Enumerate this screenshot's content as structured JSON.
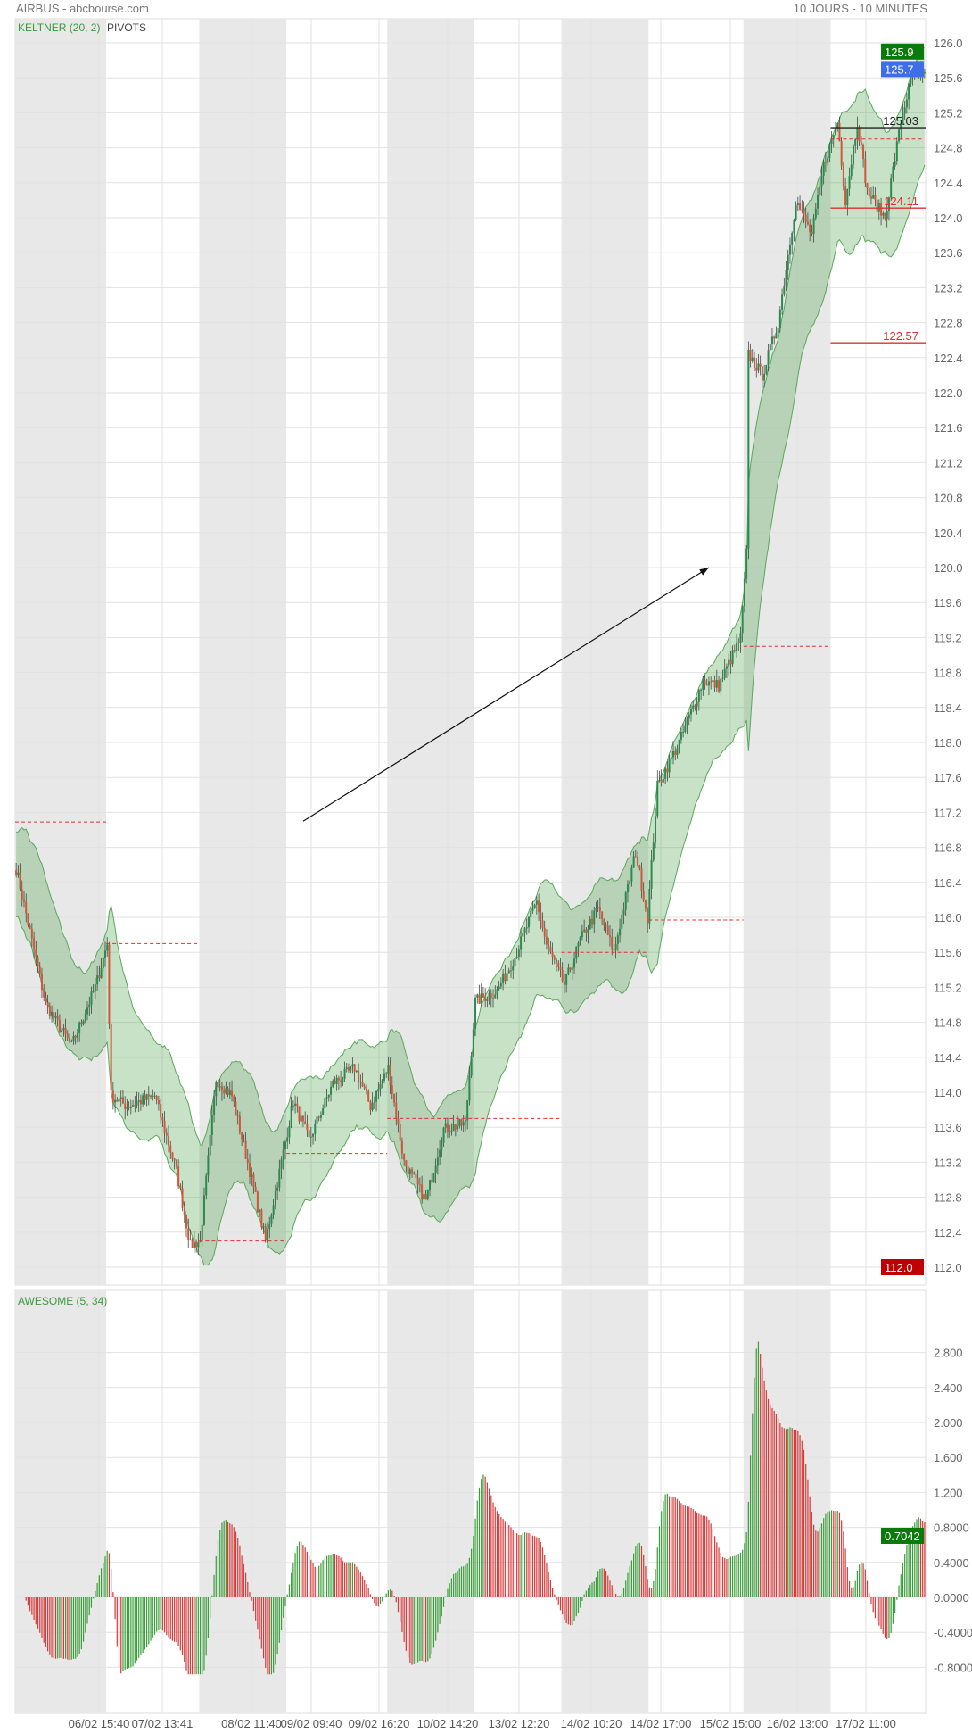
{
  "header": {
    "title": "AIRBUS - abcbourse.com",
    "period": "10 JOURS - 10 MINUTES"
  },
  "colors": {
    "up": "#2b8a4e",
    "down": "#d4553a",
    "band_stroke": "#5aa85a",
    "band_fill": "rgba(70,160,70,0.3)",
    "pivot": "#e03030",
    "ao_up": "#3a9e3a",
    "ao_down": "#d83a3a",
    "shade": "#e8e8e8"
  },
  "chart_data": [
    {
      "type": "candlestick",
      "title": "",
      "indicators": [
        "KELTNER (20, 2)",
        "PIVOTS"
      ],
      "ylim": [
        111.9,
        126.1
      ],
      "yticks": [
        "126.0",
        "125.6",
        "125.2",
        "124.8",
        "124.4",
        "124.0",
        "123.6",
        "123.2",
        "122.8",
        "122.4",
        "122.0",
        "121.6",
        "121.2",
        "120.8",
        "120.4",
        "120.0",
        "119.6",
        "119.2",
        "118.8",
        "118.4",
        "118.0",
        "117.6",
        "117.2",
        "116.8",
        "116.4",
        "116.0",
        "115.6",
        "115.2",
        "114.8",
        "114.4",
        "114.0",
        "113.6",
        "113.2",
        "112.8",
        "112.4",
        "112.0"
      ],
      "xticks": [
        "06/02 15:40",
        "07/02 13:41",
        "08/02 11:40",
        "09/02 09:40",
        "09/02 16:20",
        "10/02 14:20",
        "13/02 12:20",
        "14/02 10:20",
        "14/02 17:00",
        "15/02 15:00",
        "16/02 13:00",
        "17/02 11:00"
      ],
      "bars": 460,
      "close_anchors": [
        [
          0,
          116.56
        ],
        [
          15,
          115.0
        ],
        [
          28,
          114.53
        ],
        [
          40,
          115.2
        ],
        [
          46,
          115.7
        ],
        [
          48,
          113.96
        ],
        [
          56,
          113.84
        ],
        [
          70,
          113.96
        ],
        [
          81,
          113.1
        ],
        [
          88,
          112.25
        ],
        [
          93,
          112.3
        ],
        [
          101,
          114.15
        ],
        [
          109,
          113.96
        ],
        [
          118,
          113.1
        ],
        [
          126,
          112.3
        ],
        [
          134,
          113.2
        ],
        [
          140,
          113.9
        ],
        [
          148,
          113.45
        ],
        [
          160,
          114.1
        ],
        [
          171,
          114.28
        ],
        [
          179,
          113.84
        ],
        [
          188,
          114.28
        ],
        [
          196,
          113.2
        ],
        [
          207,
          112.76
        ],
        [
          216,
          113.58
        ],
        [
          227,
          113.64
        ],
        [
          232,
          115.04
        ],
        [
          243,
          115.16
        ],
        [
          252,
          115.55
        ],
        [
          263,
          116.18
        ],
        [
          268,
          115.68
        ],
        [
          277,
          115.23
        ],
        [
          285,
          115.74
        ],
        [
          294,
          116.1
        ],
        [
          302,
          115.6
        ],
        [
          313,
          116.75
        ],
        [
          319,
          116.0
        ],
        [
          324,
          117.5
        ],
        [
          335,
          118.0
        ],
        [
          347,
          118.7
        ],
        [
          355,
          118.65
        ],
        [
          366,
          119.2
        ],
        [
          369,
          120.16
        ],
        [
          370,
          122.44
        ],
        [
          377,
          122.2
        ],
        [
          385,
          122.8
        ],
        [
          394,
          124.2
        ],
        [
          402,
          123.8
        ],
        [
          408,
          124.6
        ],
        [
          415,
          125.1
        ],
        [
          419,
          124.2
        ],
        [
          425,
          125.1
        ],
        [
          430,
          124.3
        ],
        [
          439,
          124.0
        ],
        [
          447,
          125.1
        ],
        [
          453,
          125.67
        ],
        [
          459,
          125.6
        ]
      ],
      "day_shading": [
        [
          0,
          46
        ],
        [
          93,
          137
        ],
        [
          188,
          232
        ],
        [
          276,
          320
        ],
        [
          368,
          412
        ]
      ],
      "pivots_dashed": [
        [
          0,
          46,
          117.09
        ],
        [
          46,
          93,
          115.7
        ],
        [
          93,
          137,
          112.3
        ],
        [
          137,
          188,
          113.3
        ],
        [
          188,
          276,
          113.7
        ],
        [
          276,
          320,
          115.6
        ],
        [
          320,
          368,
          115.97
        ],
        [
          368,
          412,
          119.1
        ],
        [
          412,
          459,
          124.9
        ]
      ],
      "levels": [
        {
          "value": 125.03,
          "label": "125.03",
          "color": "#222"
        },
        {
          "value": 124.11,
          "label": "124.11",
          "color": "#e03030"
        },
        {
          "value": 122.57,
          "label": "122.57",
          "color": "#e03030"
        }
      ],
      "price_tags": [
        {
          "value": 125.9,
          "label": "125.9",
          "color": "#0a7a0a"
        },
        {
          "value": 125.7,
          "label": "125.7",
          "color": "#3d6ee8"
        },
        {
          "value": 112.0,
          "label": "112.0",
          "color": "#c00000"
        }
      ],
      "arrow": {
        "from": [
          145,
          117.1
        ],
        "to": [
          350,
          120.0
        ]
      }
    },
    {
      "type": "bar",
      "title": "AWESOME (5, 34)",
      "ylim": [
        -0.9,
        3.0
      ],
      "yticks": [
        "2.800",
        "2.400",
        "2.000",
        "1.600",
        "1.200",
        "0.8000",
        "0.4000",
        "0.0000",
        "-0.4000",
        "-0.8000"
      ],
      "last_value": {
        "value": 0.7042,
        "label": "0.7042",
        "color": "#0a7a0a"
      }
    }
  ]
}
